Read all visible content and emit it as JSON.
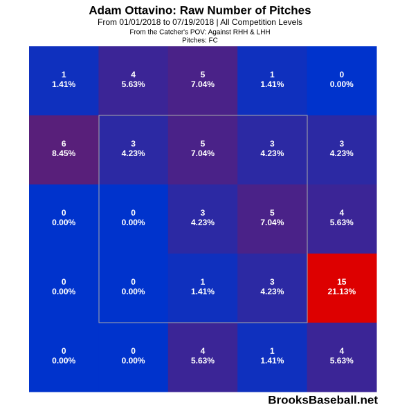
{
  "chart_data": {
    "type": "heatmap",
    "title": "Adam Ottavino: Raw Number of Pitches",
    "subtitle": "From 01/01/2018 to 07/19/2018 | All Competition Levels",
    "perspective": "From the Catcher's POV:  Against RHH & LHH",
    "pitches": "Pitches:  FC",
    "values": [
      [
        1,
        4,
        5,
        1,
        0
      ],
      [
        6,
        3,
        5,
        3,
        3
      ],
      [
        0,
        0,
        3,
        5,
        4
      ],
      [
        0,
        0,
        1,
        3,
        15
      ],
      [
        0,
        0,
        4,
        1,
        4
      ]
    ],
    "percents": [
      [
        1.41,
        5.63,
        7.04,
        1.41,
        0
      ],
      [
        8.45,
        4.23,
        7.04,
        4.23,
        4.23
      ],
      [
        0,
        0,
        4.23,
        7.04,
        5.63
      ],
      [
        0,
        0,
        1.41,
        4.23,
        21.13
      ],
      [
        0,
        0,
        5.63,
        1.41,
        5.63
      ]
    ],
    "percent_labels": [
      [
        "1.41%",
        "5.63%",
        "7.04%",
        "1.41%",
        "0.00%"
      ],
      [
        "8.45%",
        "4.23%",
        "7.04%",
        "4.23%",
        "4.23%"
      ],
      [
        "0.00%",
        "0.00%",
        "4.23%",
        "7.04%",
        "5.63%"
      ],
      [
        "0.00%",
        "0.00%",
        "1.41%",
        "4.23%",
        "21.13%"
      ],
      [
        "0.00%",
        "0.00%",
        "5.63%",
        "1.41%",
        "5.63%"
      ]
    ],
    "color_scale": [
      "#0033cc",
      "#dd0000"
    ],
    "watermark": "BrooksBaseball.net"
  }
}
